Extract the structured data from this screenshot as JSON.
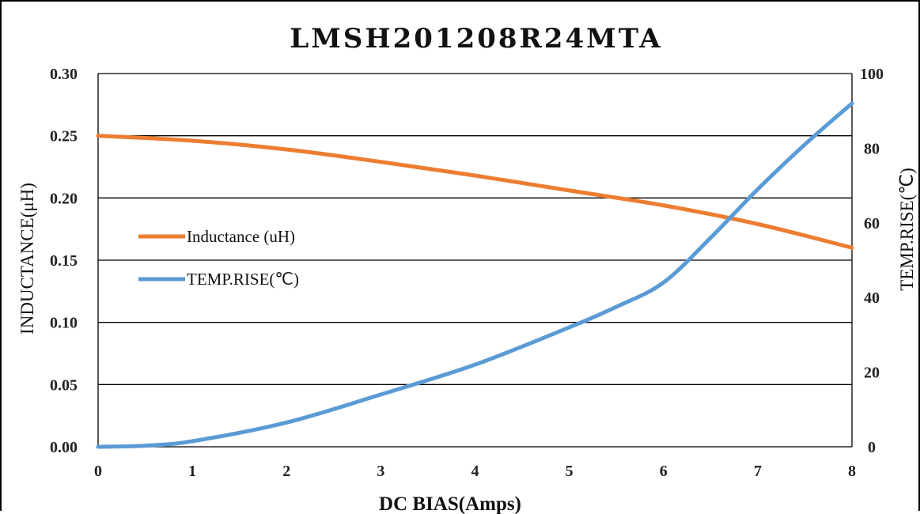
{
  "chart_data": {
    "type": "line",
    "title": "LMSH201208R24MTA",
    "xlabel": "DC BIAS(Amps)",
    "ylabel_left": "INDUCTANCE(μH)",
    "ylabel_right": "TEMP.RISE(℃)",
    "xlim": [
      0,
      8
    ],
    "ylim_left": [
      0,
      0.3
    ],
    "ylim_right": [
      0,
      100
    ],
    "x_ticks": [
      "0",
      "1",
      "2",
      "3",
      "4",
      "5",
      "6",
      "7",
      "8"
    ],
    "y_ticks_left": [
      "0.00",
      "0.05",
      "0.10",
      "0.15",
      "0.20",
      "0.25",
      "0.30"
    ],
    "y_ticks_right": [
      "0",
      "20",
      "40",
      "60",
      "80",
      "100"
    ],
    "grid": "horizontal",
    "legend_position": "center-left",
    "series": [
      {
        "name": "Inductance (uH)",
        "axis": "left",
        "color": "#ED7D31",
        "x": [
          0,
          1,
          2,
          3,
          4,
          5,
          6,
          7,
          8
        ],
        "values": [
          0.25,
          0.246,
          0.239,
          0.229,
          0.218,
          0.206,
          0.194,
          0.179,
          0.16
        ]
      },
      {
        "name": "TEMP.RISE(℃)",
        "axis": "right",
        "color": "#5B9BD5",
        "x": [
          0,
          0.5,
          1,
          2,
          3,
          4,
          5,
          5.5,
          6,
          6.5,
          7,
          7.5,
          8
        ],
        "values": [
          0,
          0.3,
          1.5,
          6.5,
          14,
          22,
          32,
          37.5,
          44,
          56,
          69,
          81,
          92
        ]
      }
    ]
  }
}
